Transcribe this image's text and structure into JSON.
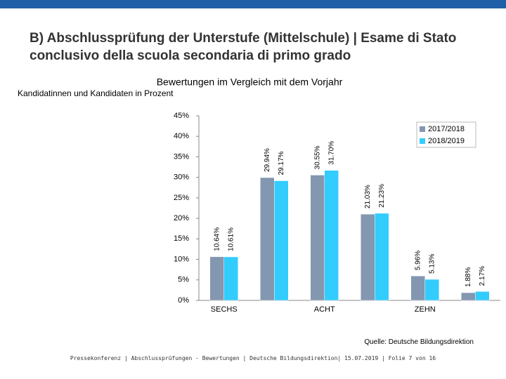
{
  "slide": {
    "title": "B) Abschlussprüfung der Unterstufe (Mittelschule) | Esame di Stato conclusivo della scuola secondaria di primo grado",
    "source": "Quelle: Deutsche Bildungsdirektion",
    "footer": "Pressekonferenz | Abschlussprüfungen - Bewertungen | Deutsche Bildungsdirektion| 15.07.2019 | Folie 7 von 16"
  },
  "chart_data": {
    "type": "bar",
    "title": "Bewertungen im Vergleich mit dem Vorjahr",
    "subtitle": "Kandidatinnen und Kandidaten in Prozent",
    "categories": [
      "SECHS",
      null,
      "ACHT",
      null,
      "ZEHN",
      null
    ],
    "series": [
      {
        "name": "2017/2018",
        "color": "#8497b0",
        "values": [
          10.64,
          29.94,
          30.55,
          21.03,
          5.96,
          1.88
        ],
        "value_labels": [
          "10.64%",
          "29.94%",
          "30.55%",
          "21.03%",
          "5.96%",
          "1.88%"
        ]
      },
      {
        "name": "2018/2019",
        "color": "#33ccff",
        "values": [
          10.61,
          29.17,
          31.7,
          21.23,
          5.13,
          2.17
        ],
        "value_labels": [
          "10.61%",
          "29.17%",
          "31.70%",
          "21.23%",
          "5.13%",
          "2.17%"
        ]
      }
    ],
    "ylim": [
      0,
      45
    ],
    "yticks": [
      {
        "value": 0,
        "label": "0%"
      },
      {
        "value": 5,
        "label": "5%"
      },
      {
        "value": 10,
        "label": "10%"
      },
      {
        "value": 15,
        "label": "15%"
      },
      {
        "value": 20,
        "label": "20%"
      },
      {
        "value": 25,
        "label": "25%"
      },
      {
        "value": 30,
        "label": "30%"
      },
      {
        "value": 35,
        "label": "35%"
      },
      {
        "value": 40,
        "label": "40%"
      },
      {
        "value": 45,
        "label": "45%"
      }
    ],
    "legend": "top-right"
  }
}
